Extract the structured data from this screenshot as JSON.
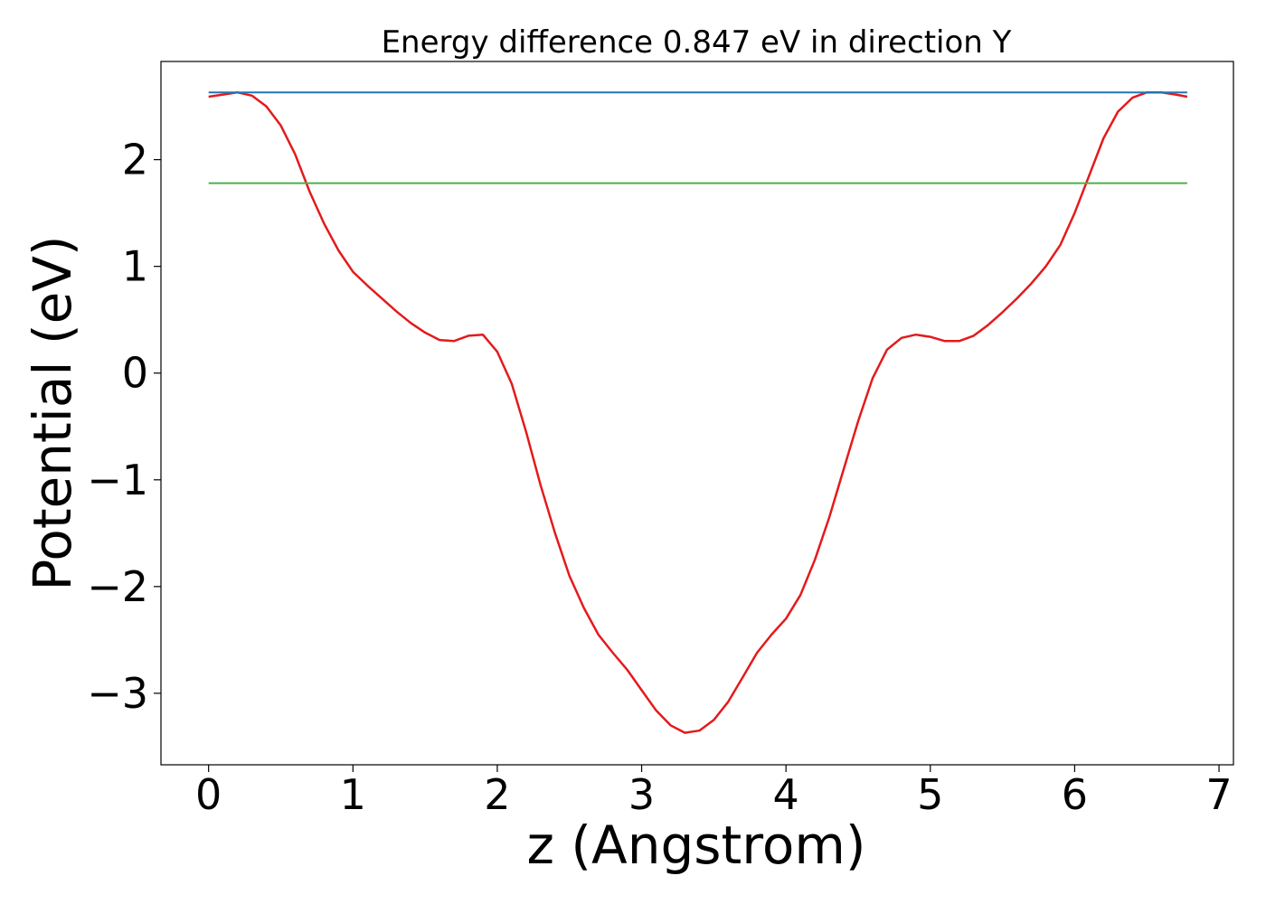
{
  "chart_data": {
    "type": "line",
    "title": "Energy difference 0.847 eV in direction Y",
    "xlabel": "z (Angstrom)",
    "ylabel": "Potential (eV)",
    "xlim": [
      -0.33,
      7.1
    ],
    "ylim": [
      -3.67,
      2.92
    ],
    "xticks": [
      0,
      1,
      2,
      3,
      4,
      5,
      6,
      7
    ],
    "xtick_labels": [
      "0",
      "1",
      "2",
      "3",
      "4",
      "5",
      "6",
      "7"
    ],
    "yticks": [
      -3,
      -2,
      -1,
      0,
      1,
      2
    ],
    "ytick_labels": [
      "−3",
      "−2",
      "−1",
      "0",
      "1",
      "2"
    ],
    "grid": false,
    "series": [
      {
        "color": "#e41a1c",
        "x": [
          0,
          0.1,
          0.2,
          0.3,
          0.4,
          0.5,
          0.6,
          0.7,
          0.8,
          0.9,
          1.0,
          1.1,
          1.2,
          1.3,
          1.4,
          1.5,
          1.6,
          1.7,
          1.8,
          1.9,
          2.0,
          2.1,
          2.2,
          2.3,
          2.4,
          2.5,
          2.6,
          2.7,
          2.8,
          2.9,
          3.0,
          3.1,
          3.2,
          3.3,
          3.4,
          3.5,
          3.6,
          3.7,
          3.8,
          3.9,
          4.0,
          4.1,
          4.2,
          4.3,
          4.4,
          4.5,
          4.6,
          4.7,
          4.8,
          4.9,
          5.0,
          5.1,
          5.2,
          5.3,
          5.4,
          5.5,
          5.6,
          5.7,
          5.8,
          5.9,
          6.0,
          6.1,
          6.2,
          6.3,
          6.4,
          6.5,
          6.6,
          6.7,
          6.78
        ],
        "y": [
          2.59,
          2.61,
          2.63,
          2.6,
          2.5,
          2.32,
          2.05,
          1.7,
          1.4,
          1.15,
          0.95,
          0.82,
          0.7,
          0.58,
          0.47,
          0.38,
          0.31,
          0.3,
          0.35,
          0.36,
          0.2,
          -0.1,
          -0.55,
          -1.05,
          -1.5,
          -1.9,
          -2.2,
          -2.45,
          -2.62,
          -2.78,
          -2.97,
          -3.16,
          -3.3,
          -3.37,
          -3.35,
          -3.25,
          -3.08,
          -2.85,
          -2.62,
          -2.45,
          -2.3,
          -2.08,
          -1.75,
          -1.35,
          -0.9,
          -0.45,
          -0.05,
          0.22,
          0.33,
          0.36,
          0.34,
          0.3,
          0.3,
          0.35,
          0.45,
          0.57,
          0.7,
          0.84,
          1.0,
          1.2,
          1.5,
          1.85,
          2.2,
          2.45,
          2.58,
          2.63,
          2.63,
          2.61,
          2.59
        ]
      },
      {
        "color": "#1f77b4",
        "x": [
          0,
          6.78
        ],
        "y": [
          2.63,
          2.63
        ]
      },
      {
        "color": "#4daf4a",
        "x": [
          0,
          6.78
        ],
        "y": [
          1.78,
          1.78
        ]
      }
    ]
  }
}
